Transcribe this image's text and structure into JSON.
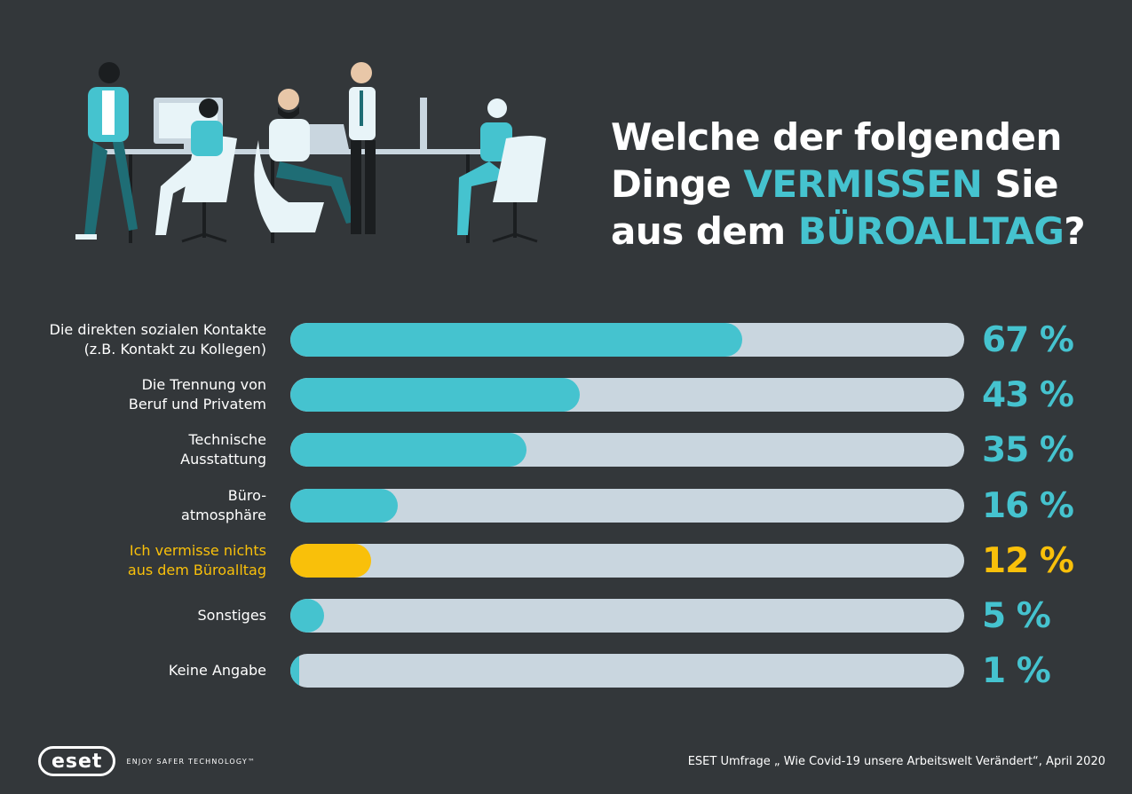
{
  "title": {
    "line1": "Welche der folgenden",
    "line2_pre": "Dinge ",
    "line2_accent": "VERMISSEN",
    "line2_post": " Sie",
    "line3_pre": "aus dem ",
    "line3_accent": "BÜROALLTAG",
    "line3_post": "?"
  },
  "colors": {
    "background": "#33373a",
    "bar": "#45c3cf",
    "highlight": "#f9c00a",
    "track": "#c9d6df",
    "text": "#ffffff"
  },
  "chart_data": {
    "type": "bar",
    "orientation": "horizontal",
    "xlim": [
      0,
      100
    ],
    "unit": "%",
    "rows": [
      {
        "label_lines": [
          "Die direkten sozialen Kontakte",
          "(z.B. Kontakt zu Kollegen)"
        ],
        "value": 67,
        "value_label": "67 %",
        "highlight": false
      },
      {
        "label_lines": [
          "Die Trennung von",
          "Beruf und Privatem"
        ],
        "value": 43,
        "value_label": "43 %",
        "highlight": false
      },
      {
        "label_lines": [
          "Technische",
          "Ausstattung"
        ],
        "value": 35,
        "value_label": "35 %",
        "highlight": false
      },
      {
        "label_lines": [
          "Büro-",
          "atmosphäre"
        ],
        "value": 16,
        "value_label": "16 %",
        "highlight": false
      },
      {
        "label_lines": [
          "Ich vermisse nichts",
          "aus dem Büroalltag"
        ],
        "value": 12,
        "value_label": "12 %",
        "highlight": true
      },
      {
        "label_lines": [
          "Sonstiges"
        ],
        "value": 5,
        "value_label": "5 %",
        "highlight": false
      },
      {
        "label_lines": [
          "Keine Angabe"
        ],
        "value": 1,
        "value_label": "1 %",
        "highlight": false
      }
    ]
  },
  "footer": {
    "logo_text": "eset",
    "tagline": "ENJOY SAFER TECHNOLOGY™",
    "source": "ESET Umfrage „ Wie Covid-19 unsere Arbeitswelt Verändert“, April 2020"
  }
}
